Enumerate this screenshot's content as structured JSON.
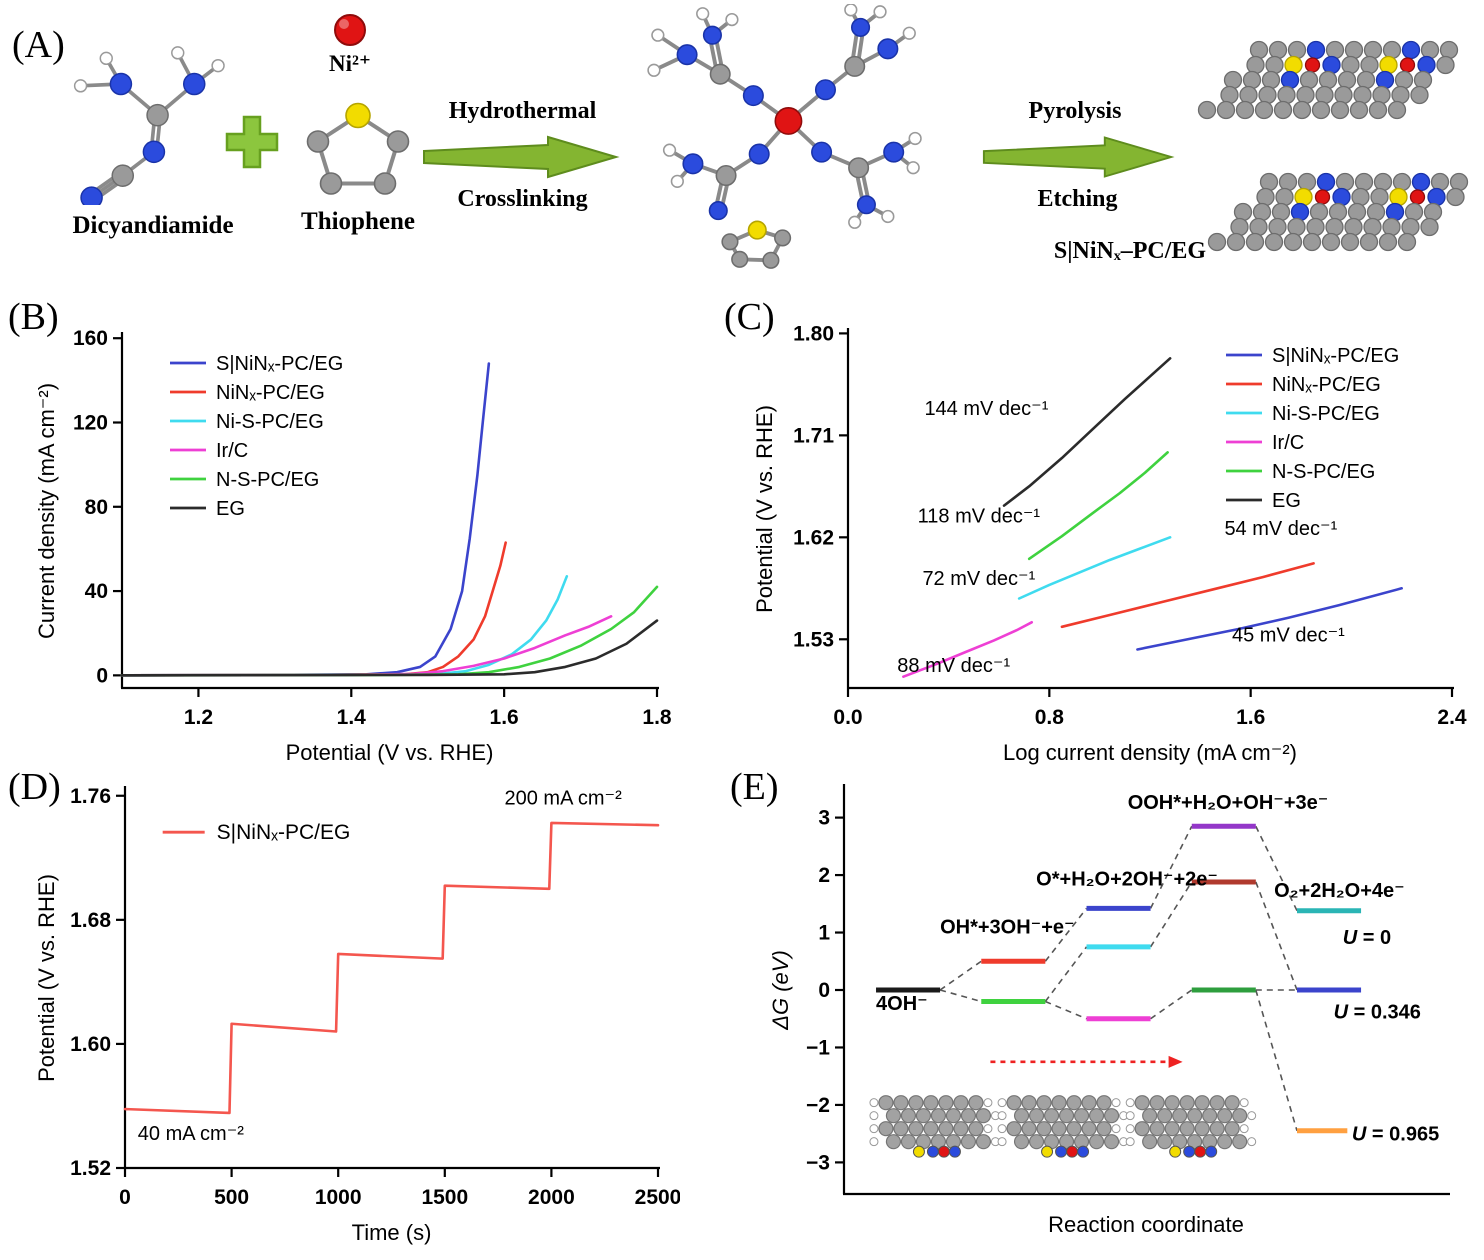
{
  "figure": {
    "panels": {
      "a": {
        "letter": "(A)",
        "reactant1": "Dicyandiamide",
        "reactant2": "Thiophene",
        "ion_label": "Ni²⁺",
        "arrow1_top": "Hydrothermal",
        "arrow1_bottom": "Crosslinking",
        "arrow2_top": "Pyrolysis",
        "arrow2_bottom": "Etching",
        "product": "S|NiNₓ–PC/EG"
      },
      "b": {
        "letter": "(B)"
      },
      "c": {
        "letter": "(C)"
      },
      "d": {
        "letter": "(D)"
      },
      "e": {
        "letter": "(E)"
      }
    }
  },
  "chart_data": [
    {
      "panel": "B",
      "type": "line",
      "title": "OER polarization curves",
      "xlabel": "Potential (V vs. RHE)",
      "ylabel": "Current density (mA cm⁻²)",
      "xlim": [
        1.1,
        1.8
      ],
      "ylim": [
        -6,
        162
      ],
      "xticks": [
        1.2,
        1.4,
        1.6,
        1.8
      ],
      "xtick_labels": [
        "1.2",
        "1.4",
        "1.6",
        "1.8"
      ],
      "yticks": [
        0,
        40,
        80,
        120,
        160
      ],
      "ytick_labels": [
        "0",
        "40",
        "80",
        "120",
        "160"
      ],
      "legend": {
        "position": "top-left"
      },
      "series": [
        {
          "name": "S|NiNₓ-PC/EG",
          "color": "#3b44cc",
          "x": [
            1.1,
            1.3,
            1.42,
            1.46,
            1.49,
            1.51,
            1.53,
            1.545,
            1.555,
            1.565,
            1.572,
            1.58
          ],
          "y": [
            0,
            0.2,
            0.5,
            1.5,
            4,
            9,
            22,
            40,
            65,
            95,
            120,
            148
          ]
        },
        {
          "name": "NiNₓ-PC/EG",
          "color": "#ef3b2c",
          "x": [
            1.1,
            1.35,
            1.47,
            1.5,
            1.52,
            1.54,
            1.56,
            1.575,
            1.585,
            1.595,
            1.602
          ],
          "y": [
            0,
            0.2,
            0.5,
            1.5,
            4,
            9,
            17,
            28,
            40,
            52,
            63
          ]
        },
        {
          "name": "Ni-S-PC/EG",
          "color": "#3fdbef",
          "x": [
            1.1,
            1.4,
            1.51,
            1.55,
            1.58,
            1.61,
            1.635,
            1.655,
            1.67,
            1.682
          ],
          "y": [
            0,
            0.2,
            0.5,
            2,
            5,
            10,
            17,
            26,
            36,
            47
          ]
        },
        {
          "name": "Ir/C",
          "color": "#ee3fd4",
          "x": [
            1.1,
            1.4,
            1.48,
            1.52,
            1.56,
            1.6,
            1.64,
            1.68,
            1.71,
            1.74
          ],
          "y": [
            0,
            0.2,
            0.7,
            2,
            4.5,
            8,
            13,
            19,
            23,
            28
          ]
        },
        {
          "name": "N-S-PC/EG",
          "color": "#3fd23f",
          "x": [
            1.1,
            1.45,
            1.54,
            1.58,
            1.62,
            1.66,
            1.7,
            1.74,
            1.77,
            1.8
          ],
          "y": [
            0,
            0.2,
            0.5,
            1.5,
            4,
            8,
            14,
            22,
            30,
            42
          ]
        },
        {
          "name": "EG",
          "color": "#2b2b2b",
          "x": [
            1.1,
            1.5,
            1.6,
            1.64,
            1.68,
            1.72,
            1.76,
            1.8
          ],
          "y": [
            0,
            0.2,
            0.5,
            1.5,
            4,
            8,
            15,
            26
          ]
        }
      ]
    },
    {
      "panel": "C",
      "type": "line",
      "title": "Tafel plots",
      "xlabel": "Log current density (mA cm⁻²)",
      "ylabel": "Potential (V vs. RHE)",
      "xlim": [
        0,
        2.4
      ],
      "ylim": [
        1.487,
        1.803
      ],
      "xticks": [
        0,
        0.8,
        1.6,
        2.4
      ],
      "xtick_labels": [
        "0.0",
        "0.8",
        "1.6",
        "2.4"
      ],
      "yticks": [
        1.53,
        1.62,
        1.71,
        1.8
      ],
      "ytick_labels": [
        "1.53",
        "1.62",
        "1.71",
        "1.80"
      ],
      "legend": {
        "position": "top-right"
      },
      "series": [
        {
          "name": "S|NiNₓ-PC/EG",
          "color": "#3b44cc",
          "tafel_slope": "45 mV dec⁻¹",
          "x": [
            1.15,
            1.35,
            1.55,
            1.75,
            1.95,
            2.2
          ],
          "y": [
            1.521,
            1.53,
            1.539,
            1.549,
            1.56,
            1.575
          ]
        },
        {
          "name": "NiNₓ-PC/EG",
          "color": "#ef3b2c",
          "tafel_slope": "54 mV dec⁻¹",
          "x": [
            0.85,
            1.05,
            1.25,
            1.45,
            1.65,
            1.85
          ],
          "y": [
            1.541,
            1.552,
            1.563,
            1.574,
            1.585,
            1.597
          ]
        },
        {
          "name": "Ni-S-PC/EG",
          "color": "#3fdbef",
          "tafel_slope": "72 mV dec⁻¹",
          "x": [
            0.68,
            0.8,
            0.92,
            1.04,
            1.16,
            1.28
          ],
          "y": [
            1.566,
            1.578,
            1.589,
            1.6,
            1.61,
            1.62
          ]
        },
        {
          "name": "Ir/C",
          "color": "#ee3fd4",
          "tafel_slope": "88 mV dec⁻¹",
          "x": [
            0.22,
            0.35,
            0.47,
            0.58,
            0.67,
            0.73
          ],
          "y": [
            1.497,
            1.508,
            1.519,
            1.529,
            1.538,
            1.545
          ]
        },
        {
          "name": "N-S-PC/EG",
          "color": "#3fd23f",
          "tafel_slope": "118 mV dec⁻¹",
          "x": [
            0.72,
            0.85,
            0.97,
            1.08,
            1.18,
            1.27
          ],
          "y": [
            1.601,
            1.621,
            1.641,
            1.659,
            1.677,
            1.695
          ]
        },
        {
          "name": "EG",
          "color": "#2b2b2b",
          "tafel_slope": "144 mV dec⁻¹",
          "x": [
            0.62,
            0.72,
            0.85,
            0.97,
            1.1,
            1.2,
            1.28
          ],
          "y": [
            1.648,
            1.665,
            1.69,
            1.715,
            1.742,
            1.762,
            1.778
          ]
        }
      ],
      "annotations": [
        {
          "text": "144 mV dec⁻¹",
          "x": 0.55,
          "y": 1.728,
          "anchor": "middle"
        },
        {
          "text": "118 mV dec⁻¹",
          "x": 0.52,
          "y": 1.633,
          "anchor": "middle"
        },
        {
          "text": "72 mV dec⁻¹",
          "x": 0.52,
          "y": 1.578,
          "anchor": "middle"
        },
        {
          "text": "88 mV dec⁻¹",
          "x": 0.42,
          "y": 1.501,
          "anchor": "middle"
        },
        {
          "text": "54 mV dec⁻¹",
          "x": 1.72,
          "y": 1.622,
          "anchor": "middle"
        },
        {
          "text": "45 mV dec⁻¹",
          "x": 1.75,
          "y": 1.528,
          "anchor": "middle"
        }
      ]
    },
    {
      "panel": "D",
      "type": "line",
      "title": "Multi-step chronopotentiometry",
      "xlabel": "Time (s)",
      "ylabel": "Potential (V vs. RHE)",
      "xlim": [
        0,
        2500
      ],
      "ylim": [
        1.52,
        1.765
      ],
      "xticks": [
        0,
        500,
        1000,
        1500,
        2000,
        2500
      ],
      "xtick_labels": [
        "0",
        "500",
        "1000",
        "1500",
        "2000",
        "2500"
      ],
      "yticks": [
        1.52,
        1.6,
        1.68,
        1.76
      ],
      "ytick_labels": [
        "1.52",
        "1.60",
        "1.68",
        "1.76"
      ],
      "legend": {
        "position": "manual",
        "x": 430,
        "y": 1.732
      },
      "series": [
        {
          "name": "S|NiNₓ-PC/EG",
          "color": "#f4564e",
          "x": [
            0,
            490,
            500,
            990,
            1000,
            1490,
            1500,
            1990,
            2000,
            2500
          ],
          "y": [
            1.558,
            1.5555,
            1.613,
            1.608,
            1.658,
            1.655,
            1.702,
            1.7,
            1.7425,
            1.741
          ]
        }
      ],
      "annotations": [
        {
          "text": "40 mA cm⁻²",
          "x": 60,
          "y": 1.538,
          "anchor": "start"
        },
        {
          "text": "200 mA cm⁻²",
          "x": 1780,
          "y": 1.7545,
          "anchor": "start"
        }
      ]
    },
    {
      "panel": "E",
      "type": "line",
      "subtype": "free-energy-diagram",
      "title": "OER free-energy diagram",
      "xlabel": "Reaction coordinate",
      "ylabel": "ΔG (eV)",
      "xlim": [
        0,
        6.6
      ],
      "ylim": [
        -3.55,
        3.55
      ],
      "yticks": [
        -3,
        -2,
        -1,
        0,
        1,
        2,
        3
      ],
      "ytick_labels": [
        "−3",
        "−2",
        "−1",
        "0",
        "1",
        "2",
        "3"
      ],
      "levels": [
        {
          "id": "s1",
          "x0": 0.35,
          "x1": 1.05,
          "e": 0,
          "color": "#1a1a1a",
          "state": "4OH⁻"
        },
        {
          "id": "r2",
          "x0": 1.5,
          "x1": 2.2,
          "e": 0.5,
          "color": "#ef3b2c",
          "state": "OH*+3OH⁻+e⁻ (U = 0)"
        },
        {
          "id": "g2",
          "x0": 1.5,
          "x1": 2.2,
          "e": -0.2,
          "color": "#3fd23f",
          "state": "OH*+3OH⁻+e⁻ (U = 0.346)"
        },
        {
          "id": "b3",
          "x0": 2.65,
          "x1": 3.35,
          "e": 1.42,
          "color": "#3b44cc",
          "state": "O*+H₂O+2OH⁻+2e⁻ (U = 0)"
        },
        {
          "id": "c3",
          "x0": 2.65,
          "x1": 3.35,
          "e": 0.75,
          "color": "#3fdbef",
          "state": "O*+H₂O+2OH⁻+2e⁻ (U = 0.346)"
        },
        {
          "id": "m3",
          "x0": 2.65,
          "x1": 3.35,
          "e": -0.5,
          "color": "#ee3fd4",
          "state": "O*+H₂O+2OH⁻+2e⁻ (U = 0.965)"
        },
        {
          "id": "p4",
          "x0": 3.8,
          "x1": 4.5,
          "e": 2.85,
          "color": "#9437c9",
          "state": "OOH*+H₂O+OH⁻+3e⁻ (U = 0)"
        },
        {
          "id": "dr4",
          "x0": 3.8,
          "x1": 4.5,
          "e": 1.88,
          "color": "#b03a2e",
          "state": "OOH*+H₂O+OH⁻+3e⁻ (U = 0.346)"
        },
        {
          "id": "g4",
          "x0": 3.8,
          "x1": 4.5,
          "e": 0.0,
          "color": "#2e9e3e",
          "state": "OOH*+H₂O+OH⁻+3e⁻ (U = 0.965)"
        },
        {
          "id": "t5",
          "x0": 4.95,
          "x1": 5.65,
          "e": 1.38,
          "color": "#2ab5b5",
          "state": "O₂+2H₂O+4e⁻ (U = 0)"
        },
        {
          "id": "n5",
          "x0": 4.95,
          "x1": 5.65,
          "e": 0.0,
          "color": "#3b44cc",
          "state": "O₂+2H₂O+4e⁻ (U = 0.346)"
        },
        {
          "id": "o5",
          "x0": 4.95,
          "x1": 5.5,
          "e": -2.45,
          "color": "#ffa040",
          "state": "O₂+2H₂O+4e⁻ (U = 0.965)"
        }
      ],
      "connectors": [
        [
          "s1",
          "r2"
        ],
        [
          "s1",
          "g2"
        ],
        [
          "r2",
          "b3"
        ],
        [
          "g2",
          "c3"
        ],
        [
          "g2",
          "m3"
        ],
        [
          "b3",
          "p4"
        ],
        [
          "c3",
          "dr4"
        ],
        [
          "m3",
          "g4"
        ],
        [
          "p4",
          "t5"
        ],
        [
          "dr4",
          "n5"
        ],
        [
          "g4",
          "n5"
        ],
        [
          "g4",
          "o5"
        ]
      ],
      "annotations": [
        {
          "text": "4OH⁻",
          "x": 0.35,
          "y": -0.35,
          "anchor": "start",
          "bold": true
        },
        {
          "text": "OH*+3OH⁻+e⁻",
          "x": 1.05,
          "y": 0.98,
          "anchor": "start",
          "bold": true
        },
        {
          "text": "O*+H₂O+2OH⁻+2e⁻",
          "x": 2.1,
          "y": 1.82,
          "anchor": "start",
          "bold": true
        },
        {
          "text": "OOH*+H₂O+OH⁻+3e⁻",
          "x": 3.1,
          "y": 3.15,
          "anchor": "start",
          "bold": true
        },
        {
          "text": "O₂+2H₂O+4e⁻",
          "x": 4.7,
          "y": 1.62,
          "anchor": "start",
          "bold": true
        },
        {
          "text": "U = 0",
          "x": 5.45,
          "y": 0.8,
          "anchor": "start",
          "bold": true
        },
        {
          "text": "U = 0.346",
          "x": 5.35,
          "y": -0.5,
          "anchor": "start",
          "bold": true
        },
        {
          "text": "U = 0.965",
          "x": 5.55,
          "y": -2.62,
          "anchor": "start",
          "bold": true
        }
      ],
      "arrow": {
        "x1": 1.6,
        "y1": -1.25,
        "x2": 3.7,
        "y2": -1.25,
        "color": "#ee2222"
      }
    }
  ]
}
